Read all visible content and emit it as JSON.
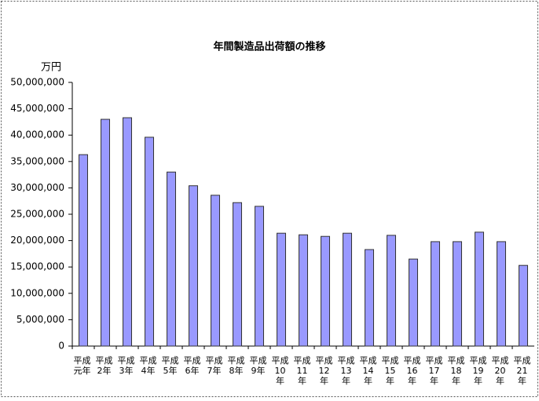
{
  "chart_data": {
    "type": "bar",
    "title": "年間製造品出荷額の推移",
    "y_label": "万円",
    "categories": [
      "平成元年",
      "平成2年",
      "平成3年",
      "平成4年",
      "平成5年",
      "平成6年",
      "平成7年",
      "平成8年",
      "平成9年",
      "平成10年",
      "平成11年",
      "平成12年",
      "平成13年",
      "平成14年",
      "平成15年",
      "平成16年",
      "平成17年",
      "平成18年",
      "平成19年",
      "平成20年",
      "平成21年"
    ],
    "values": [
      36300000,
      43000000,
      43300000,
      39600000,
      33000000,
      30400000,
      28600000,
      27200000,
      26500000,
      21400000,
      21100000,
      20800000,
      21400000,
      18300000,
      21000000,
      16500000,
      19800000,
      19800000,
      21600000,
      19800000,
      15300000
    ],
    "color": "#9999ff",
    "ylim": [
      0,
      50000000
    ],
    "yticks": [
      0,
      {
        "value": 5000000,
        "label": "5,000,000"
      },
      {
        "value": 10000000,
        "label": "10,000,000"
      },
      {
        "value": 15000000,
        "label": "15,000,000"
      },
      {
        "value": 20000000,
        "label": "20,000,000"
      },
      {
        "value": 25000000,
        "label": "25,000,000"
      },
      {
        "value": 30000000,
        "label": "30,000,000"
      },
      {
        "value": 35000000,
        "label": "35,000,000"
      },
      {
        "value": 40000000,
        "label": "40,000,000"
      },
      {
        "value": 45000000,
        "label": "45,000,000"
      },
      {
        "value": 50000000,
        "label": "50,000,000"
      }
    ],
    "grid": false
  }
}
